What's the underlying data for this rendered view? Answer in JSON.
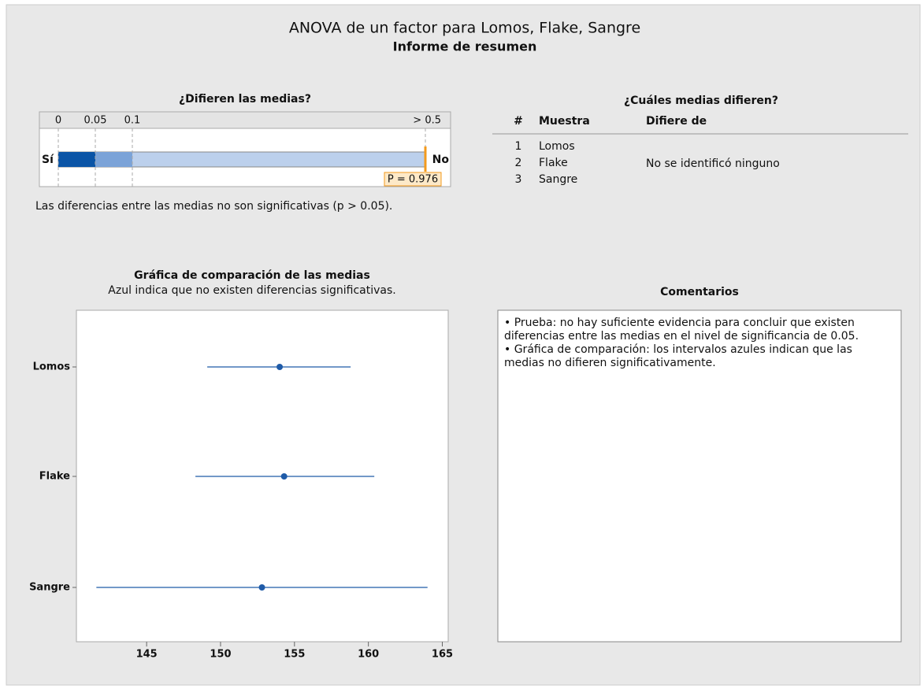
{
  "header": {
    "title": "ANOVA de un factor para Lomos, Flake, Sangre",
    "subtitle": "Informe de resumen"
  },
  "p_panel": {
    "title": "¿Difieren las medias?",
    "ticks": [
      0,
      0.05,
      0.1,
      {
        "value": 0.5,
        "label": "> 0.5"
      }
    ],
    "left_label": "Sí",
    "right_label": "No",
    "p_value": 0.976,
    "p_label": "P = 0.976",
    "note": "Las diferencias entre las medias no son significativas (p > 0.05)."
  },
  "table": {
    "title": "¿Cuáles medias difieren?",
    "headers": [
      "#",
      "Muestra",
      "Difiere de"
    ],
    "rows": [
      [
        "1",
        "Lomos"
      ],
      [
        "2",
        "Flake"
      ],
      [
        "3",
        "Sangre"
      ]
    ],
    "result": "No se identificó ninguno"
  },
  "chart_data": {
    "type": "interval",
    "title": "Gráfica de comparación de las medias",
    "subtitle": "Azul indica que no existen diferencias significativas.",
    "categories": [
      "Lomos",
      "Flake",
      "Sangre"
    ],
    "values": [
      154.0,
      154.3,
      152.8
    ],
    "lower": [
      149.1,
      148.3,
      141.6
    ],
    "upper": [
      158.8,
      160.4,
      164.0
    ],
    "color": "#1f5ba8",
    "xlim": [
      140.25,
      165.4
    ],
    "xticks": [
      145,
      150,
      155,
      160,
      165
    ]
  },
  "comments": {
    "title": "Comentarios",
    "items": [
      "• Prueba: no hay suficiente evidencia para concluir que existen diferencias entre las medias en el nivel de significancia de 0.05.",
      "• Gráfica de comparación: los intervalos azules indican que las medias no difieren significativamente."
    ]
  }
}
